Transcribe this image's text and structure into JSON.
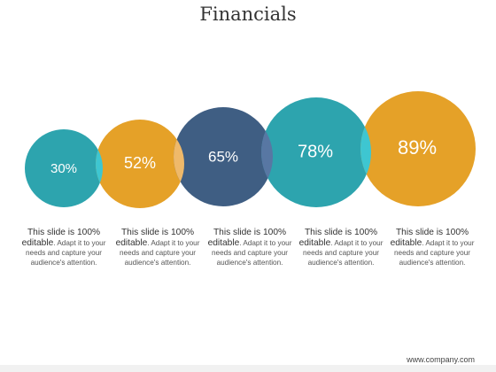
{
  "title": "Financials",
  "colors": {
    "teal": "#2da4ae",
    "orange": "#e5a128",
    "navy": "#3f5e83",
    "overlap_light_teal": "#3ec6d1",
    "overlap_light_orange": "#efb96a",
    "overlap_blue": "#5877a3"
  },
  "items": [
    {
      "percent": "30%",
      "color": "teal",
      "caption_lead": "This slide is 100%",
      "caption_emph": "editable",
      "caption_rest": ". Adapt it to your needs and capture your audience's attention."
    },
    {
      "percent": "52%",
      "color": "orange",
      "caption_lead": "This slide is 100%",
      "caption_emph": "editable",
      "caption_rest": ". Adapt it to your needs and capture your audience's attention."
    },
    {
      "percent": "65%",
      "color": "navy",
      "caption_lead": "This slide is 100%",
      "caption_emph": "editable",
      "caption_rest": ". Adapt it to your needs and capture your audience's attention."
    },
    {
      "percent": "78%",
      "color": "teal",
      "caption_lead": "This slide is 100%",
      "caption_emph": "editable",
      "caption_rest": ". Adapt it to your needs and capture your audience's attention."
    },
    {
      "percent": "89%",
      "color": "orange",
      "caption_lead": "This slide is 100%",
      "caption_emph": "editable",
      "caption_rest": ". Adapt it to your needs and capture your audience's attention."
    }
  ],
  "footer": "www.company.com"
}
